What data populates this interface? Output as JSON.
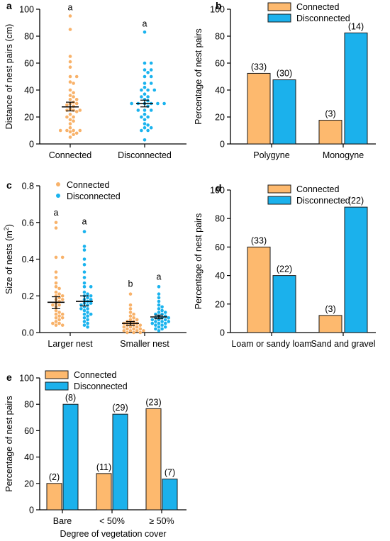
{
  "colors": {
    "connected_fill": "#FDB96E",
    "connected_stroke": "#1a1a1a",
    "disconnected_fill": "#1BB1EC",
    "disconnected_stroke": "#1a1a1a",
    "connected_dot": "#F8B26A",
    "disconnected_dot": "#1AB3EE",
    "axis": "#000000"
  },
  "legend": {
    "connected": "Connected",
    "disconnected": "Disconnected"
  },
  "chart_data": [
    {
      "panel": "a",
      "type": "scatter",
      "ylabel": "Distance of nest pairs (cm)",
      "xlabel": "",
      "ylim": [
        0,
        100
      ],
      "yticks": [
        0,
        20,
        40,
        60,
        80,
        100
      ],
      "categories": [
        "Connected",
        "Disconnected"
      ],
      "letters": [
        "a",
        "a"
      ],
      "series": [
        {
          "group": "Connected",
          "mean": 27.5,
          "se_low": 24.5,
          "se_high": 31,
          "values": [
            95,
            85,
            65,
            61,
            57,
            50,
            50,
            46,
            45,
            40,
            38,
            36,
            35,
            33,
            33,
            31,
            30,
            30,
            29,
            28,
            26,
            25,
            25,
            25,
            24,
            22,
            20,
            20,
            18,
            17,
            15,
            12,
            10,
            10,
            10,
            10,
            9,
            8,
            7,
            5
          ]
        },
        {
          "group": "Disconnected",
          "mean": 30,
          "se_low": 27.5,
          "se_high": 32.5,
          "values": [
            83,
            60,
            60,
            55,
            55,
            53,
            50,
            50,
            45,
            45,
            42,
            40,
            40,
            40,
            37,
            35,
            35,
            33,
            32,
            30,
            30,
            30,
            30,
            30,
            30,
            28,
            25,
            25,
            25,
            22,
            20,
            20,
            18,
            15,
            14,
            12,
            12,
            10,
            10,
            3
          ]
        }
      ]
    },
    {
      "panel": "b",
      "type": "bar",
      "ylabel": "Percentage of nest pairs",
      "xlabel": "",
      "ylim": [
        0,
        100
      ],
      "yticks": [
        0,
        20,
        40,
        60,
        80,
        100
      ],
      "categories": [
        "Polygyne",
        "Monogyne"
      ],
      "series": [
        {
          "name": "Connected",
          "values": [
            52.4,
            17.6
          ],
          "labels": [
            "(33)",
            "(3)"
          ]
        },
        {
          "name": "Disconnected",
          "values": [
            47.6,
            82.4
          ],
          "labels": [
            "(30)",
            "(14)"
          ]
        }
      ]
    },
    {
      "panel": "c",
      "type": "scatter",
      "ylabel": "Size of nests (m",
      "ylabel_sup": "2",
      "ylabel_end": ")",
      "xlabel": "",
      "ylim": [
        0,
        0.8
      ],
      "yticks": [
        0.0,
        0.2,
        0.4,
        0.6,
        0.8
      ],
      "categories": [
        "Larger nest",
        "Smaller nest"
      ],
      "series": [
        {
          "group": "Larger nest",
          "name": "Connected",
          "letter": "a",
          "mean": 0.165,
          "se_low": 0.13,
          "se_high": 0.195,
          "values": [
            0.6,
            0.57,
            0.41,
            0.41,
            0.33,
            0.3,
            0.27,
            0.25,
            0.24,
            0.22,
            0.21,
            0.2,
            0.2,
            0.19,
            0.18,
            0.18,
            0.17,
            0.16,
            0.15,
            0.15,
            0.14,
            0.12,
            0.11,
            0.1,
            0.1,
            0.09,
            0.08,
            0.08,
            0.07,
            0.06,
            0.05,
            0.05,
            0.04,
            0.04
          ]
        },
        {
          "group": "Larger nest",
          "name": "Disconnected",
          "letter": "a",
          "mean": 0.17,
          "se_low": 0.145,
          "se_high": 0.2,
          "values": [
            0.55,
            0.47,
            0.45,
            0.4,
            0.37,
            0.33,
            0.3,
            0.27,
            0.25,
            0.25,
            0.22,
            0.21,
            0.2,
            0.2,
            0.19,
            0.18,
            0.18,
            0.17,
            0.16,
            0.16,
            0.15,
            0.15,
            0.14,
            0.13,
            0.13,
            0.12,
            0.11,
            0.1,
            0.1,
            0.09,
            0.08,
            0.07,
            0.06,
            0.05,
            0.04,
            0.03
          ]
        },
        {
          "group": "Smaller nest",
          "name": "Connected",
          "letter": "b",
          "mean": 0.05,
          "se_low": 0.04,
          "se_high": 0.06,
          "values": [
            0.21,
            0.15,
            0.13,
            0.11,
            0.1,
            0.09,
            0.08,
            0.07,
            0.07,
            0.06,
            0.06,
            0.05,
            0.05,
            0.05,
            0.04,
            0.04,
            0.04,
            0.03,
            0.03,
            0.03,
            0.02,
            0.02,
            0.02,
            0.01,
            0.01,
            0.01,
            0.01,
            0.0,
            0.0,
            0.0
          ]
        },
        {
          "group": "Smaller nest",
          "name": "Disconnected",
          "letter": "a",
          "mean": 0.085,
          "se_low": 0.075,
          "se_high": 0.095,
          "values": [
            0.25,
            0.21,
            0.19,
            0.17,
            0.15,
            0.14,
            0.13,
            0.12,
            0.11,
            0.11,
            0.1,
            0.1,
            0.09,
            0.09,
            0.08,
            0.08,
            0.08,
            0.07,
            0.07,
            0.07,
            0.06,
            0.06,
            0.06,
            0.05,
            0.05,
            0.05,
            0.04,
            0.04,
            0.03,
            0.03,
            0.02,
            0.02,
            0.01
          ]
        }
      ]
    },
    {
      "panel": "d",
      "type": "bar",
      "ylabel": "Percentage of nest pairs",
      "xlabel": "",
      "ylim": [
        0,
        100
      ],
      "yticks": [
        0,
        20,
        40,
        60,
        80,
        100
      ],
      "categories": [
        "Loam or sandy loam",
        "Sand and gravel"
      ],
      "series": [
        {
          "name": "Connected",
          "values": [
            60,
            12
          ],
          "labels": [
            "(33)",
            "(3)"
          ]
        },
        {
          "name": "Disconnected",
          "values": [
            40,
            88
          ],
          "labels": [
            "(22)",
            "(22)"
          ]
        }
      ]
    },
    {
      "panel": "e",
      "type": "bar",
      "ylabel": "Percentage of nest pairs",
      "xlabel": "Degree of vegetation cover",
      "ylim": [
        0,
        100
      ],
      "yticks": [
        0,
        20,
        40,
        60,
        80,
        100
      ],
      "categories": [
        "Bare",
        "< 50%",
        "≥ 50%"
      ],
      "series": [
        {
          "name": "Connected",
          "values": [
            20,
            27.5,
            76.7
          ],
          "labels": [
            "(2)",
            "(11)",
            "(23)"
          ]
        },
        {
          "name": "Disconnected",
          "values": [
            80,
            72.5,
            23.3
          ],
          "labels": [
            "(8)",
            "(29)",
            "(7)"
          ]
        }
      ]
    }
  ]
}
